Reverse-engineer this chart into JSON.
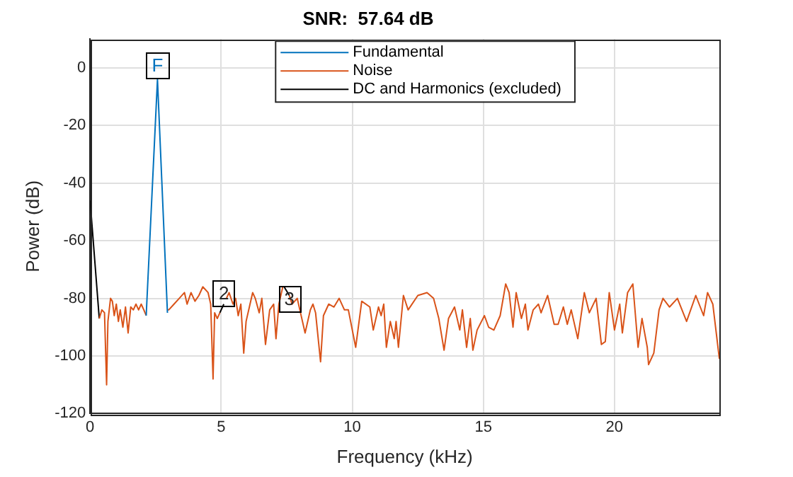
{
  "chart_data": {
    "type": "line",
    "title": "SNR:  57.64 dB",
    "xlabel": "Frequency (kHz)",
    "ylabel": "Power (dB)",
    "xlim": [
      0,
      24
    ],
    "xticks": [
      0,
      5,
      10,
      15,
      20
    ],
    "ylim": [
      -120,
      10
    ],
    "yticks": [
      -120,
      -100,
      -80,
      -60,
      -40,
      -20,
      0
    ],
    "grid": true,
    "legend": "top",
    "marker": "none",
    "line_style": "solid",
    "series": [
      {
        "name": "Fundamental",
        "color": "#0072bd",
        "x": [
          2.14,
          2.57,
          2.95
        ],
        "values": [
          -86,
          -4,
          -85
        ]
      },
      {
        "name": "Noise",
        "color": "#d95319",
        "x": [
          0.35,
          0.45,
          0.55,
          0.63,
          0.68,
          0.78,
          0.85,
          0.92,
          1.0,
          1.08,
          1.15,
          1.25,
          1.35,
          1.45,
          1.55,
          1.65,
          1.75,
          1.85,
          1.95,
          2.05,
          2.14,
          2.15,
          2.95,
          3.0,
          3.2,
          3.4,
          3.6,
          3.7,
          3.85,
          4.0,
          4.15,
          4.3,
          4.5,
          4.6,
          4.69,
          4.75,
          4.85,
          4.95,
          5.1,
          5.2,
          5.3,
          5.45,
          5.55,
          5.65,
          5.75,
          5.86,
          5.95,
          6.1,
          6.2,
          6.3,
          6.45,
          6.55,
          6.69,
          6.85,
          7.0,
          7.09,
          7.2,
          7.35,
          7.4,
          7.6,
          7.7,
          7.9,
          8.0,
          8.2,
          8.4,
          8.5,
          8.6,
          8.79,
          8.9,
          9.1,
          9.3,
          9.5,
          9.7,
          9.85,
          10.13,
          10.36,
          10.67,
          10.8,
          11.0,
          11.1,
          11.2,
          11.3,
          11.45,
          11.6,
          11.67,
          11.76,
          11.95,
          12.13,
          12.5,
          12.85,
          13.1,
          13.3,
          13.5,
          13.67,
          13.9,
          14.1,
          14.2,
          14.36,
          14.5,
          14.6,
          14.76,
          15.04,
          15.2,
          15.4,
          15.64,
          15.85,
          15.98,
          16.13,
          16.25,
          16.45,
          16.6,
          16.7,
          16.9,
          17.1,
          17.2,
          17.45,
          17.7,
          17.85,
          18.05,
          18.2,
          18.35,
          18.6,
          18.85,
          19.04,
          19.3,
          19.5,
          19.65,
          19.8,
          20.0,
          20.2,
          20.3,
          20.5,
          20.7,
          20.9,
          21.05,
          21.25,
          21.3,
          21.5,
          21.7,
          21.85,
          22.1,
          22.4,
          22.75,
          23.1,
          23.4,
          23.55,
          23.75,
          24.0
        ],
        "values": [
          -87,
          -84,
          -85,
          -110,
          -88,
          -80,
          -81,
          -86,
          -82,
          -88,
          -84,
          -90,
          -83,
          -92,
          -83,
          -84,
          -82,
          -84,
          -82,
          -84,
          -86,
          null,
          -84,
          -84,
          -82,
          -80,
          -78,
          -82,
          -78,
          -81,
          -79,
          -76,
          -78,
          -82,
          -108,
          -85,
          -87,
          -85,
          null,
          -80,
          -78,
          -82,
          -80,
          -86,
          -82,
          -99,
          -88,
          -82,
          -78,
          -80,
          -85,
          -80,
          -96,
          -84,
          -82,
          -94,
          -82,
          -76,
          null,
          -79,
          -82,
          -80,
          -84,
          -92,
          -84,
          -82,
          -85,
          -102,
          -86,
          -82,
          -83,
          -80,
          -84,
          -84,
          -97,
          -81,
          -83,
          -91,
          -83,
          -86,
          -82,
          -97,
          -88,
          -94,
          -88,
          -97,
          -79,
          -84,
          -79,
          -78,
          -80,
          -87,
          -98,
          -87,
          -83,
          -91,
          -84,
          -97,
          -87,
          -98,
          -91,
          -86,
          -90,
          -91,
          -86,
          -75,
          -78,
          -90,
          -78,
          -87,
          -82,
          -91,
          -84,
          -82,
          -85,
          -79,
          -89,
          -89,
          -83,
          -89,
          -84,
          -94,
          -78,
          -85,
          -80,
          -96,
          -95,
          -78,
          -91,
          -82,
          -92,
          -78,
          -75,
          -97,
          -87,
          -97,
          -103,
          -99,
          -84,
          -80,
          -83,
          -80,
          -88,
          -79,
          -86,
          -78,
          -82,
          -101
        ]
      },
      {
        "name": "DC and Harmonics (excluded)",
        "color": "#000000",
        "x": [
          0,
          0.35,
          0.5,
          4.95,
          5.1,
          5.2,
          7.4,
          7.6
        ],
        "values": [
          -46,
          -87,
          null,
          -85,
          -82,
          null,
          -76,
          -79
        ]
      }
    ],
    "annotations": [
      {
        "text": "F",
        "x": 2.57,
        "y": 1
      },
      {
        "text": "2",
        "x": 5.1,
        "y": -78
      },
      {
        "text": "3",
        "x": 7.6,
        "y": -80
      }
    ]
  }
}
